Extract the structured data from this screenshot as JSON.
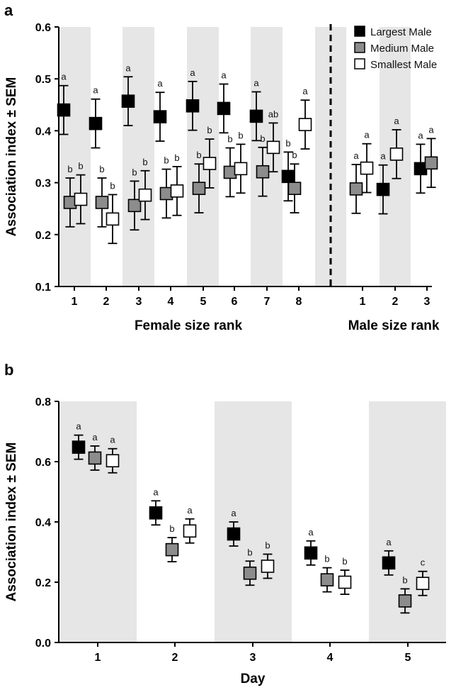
{
  "chart_data": [
    {
      "panel": "a",
      "type": "scatter",
      "ylabel": "Association index ± SEM",
      "ylim": [
        0.1,
        0.6
      ],
      "y_ticks": [
        "0.1",
        "0.2",
        "0.3",
        "0.4",
        "0.5",
        "0.6"
      ],
      "legend_position": "top-right",
      "colors": {
        "Largest Male": "#000000",
        "Medium Male": "#8c8c8c",
        "Smallest Male": "#ffffff",
        "shade": "#e6e6e6"
      },
      "groups": [
        {
          "xlabel": "Female size rank",
          "categories": [
            "1",
            "2",
            "3",
            "4",
            "5",
            "6",
            "7",
            "8"
          ],
          "series": [
            {
              "name": "Largest Male",
              "values": [
                0.44,
                0.414,
                0.457,
                0.427,
                0.448,
                0.443,
                0.428,
                0.312
              ],
              "sem": [
                0.047,
                0.047,
                0.047,
                0.047,
                0.047,
                0.047,
                0.047,
                0.047
              ],
              "labels": [
                "a",
                "a",
                "a",
                "a",
                "a",
                "a",
                "a",
                "b"
              ]
            },
            {
              "name": "Medium Male",
              "values": [
                0.262,
                0.262,
                0.256,
                0.279,
                0.289,
                0.32,
                0.321,
                0.289
              ],
              "sem": [
                0.047,
                0.047,
                0.047,
                0.047,
                0.047,
                0.047,
                0.047,
                0.047
              ],
              "labels": [
                "b",
                "b",
                "b",
                "b",
                "b",
                "b",
                "b",
                "b"
              ]
            },
            {
              "name": "Smallest Male",
              "values": [
                0.268,
                0.23,
                0.276,
                0.284,
                0.337,
                0.327,
                0.368,
                0.412
              ],
              "sem": [
                0.047,
                0.047,
                0.047,
                0.047,
                0.047,
                0.047,
                0.047,
                0.047
              ],
              "labels": [
                "b",
                "b",
                "b",
                "b",
                "b",
                "b",
                "ab",
                "a"
              ]
            }
          ]
        },
        {
          "xlabel": "Male size rank",
          "categories": [
            "1",
            "2",
            "3"
          ],
          "series": [
            {
              "name": "Largest Male",
              "values": [
                null,
                0.287,
                0.327
              ],
              "sem": [
                null,
                0.047,
                0.047
              ],
              "labels": [
                "",
                "a",
                "a"
              ]
            },
            {
              "name": "Medium Male",
              "values": [
                0.288,
                null,
                0.338
              ],
              "sem": [
                0.047,
                null,
                0.047
              ],
              "labels": [
                "a",
                "",
                "a"
              ]
            },
            {
              "name": "Smallest Male",
              "values": [
                0.328,
                0.355,
                null
              ],
              "sem": [
                0.047,
                0.047,
                null
              ],
              "labels": [
                "a",
                "a",
                ""
              ]
            }
          ]
        }
      ]
    },
    {
      "panel": "b",
      "type": "scatter",
      "xlabel": "Day",
      "ylabel": "Association index ± SEM",
      "ylim": [
        0.0,
        0.8
      ],
      "y_ticks": [
        "0.0",
        "0.2",
        "0.4",
        "0.6",
        "0.8"
      ],
      "categories": [
        "1",
        "2",
        "3",
        "4",
        "5"
      ],
      "series": [
        {
          "name": "Largest Male",
          "values": [
            0.648,
            0.43,
            0.36,
            0.297,
            0.264
          ],
          "sem": [
            0.04,
            0.04,
            0.04,
            0.04,
            0.04
          ],
          "labels": [
            "a",
            "a",
            "a",
            "a",
            "a"
          ]
        },
        {
          "name": "Medium Male",
          "values": [
            0.612,
            0.308,
            0.23,
            0.208,
            0.138
          ],
          "sem": [
            0.04,
            0.04,
            0.04,
            0.04,
            0.04
          ],
          "labels": [
            "a",
            "b",
            "b",
            "b",
            "b"
          ]
        },
        {
          "name": "Smallest Male",
          "values": [
            0.603,
            0.37,
            0.253,
            0.2,
            0.196
          ],
          "sem": [
            0.04,
            0.04,
            0.04,
            0.04,
            0.04
          ],
          "labels": [
            "a",
            "a",
            "b",
            "b",
            "c"
          ]
        }
      ]
    }
  ]
}
